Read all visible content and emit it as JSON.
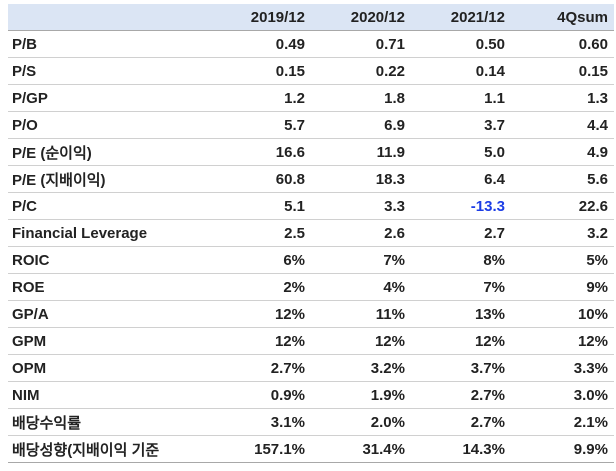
{
  "columns": [
    "",
    "2019/12",
    "2020/12",
    "2021/12",
    "4Qsum"
  ],
  "rows": [
    {
      "label": "P/B",
      "values": [
        "0.49",
        "0.71",
        "0.50",
        "0.60"
      ]
    },
    {
      "label": "P/S",
      "values": [
        "0.15",
        "0.22",
        "0.14",
        "0.15"
      ]
    },
    {
      "label": "P/GP",
      "values": [
        "1.2",
        "1.8",
        "1.1",
        "1.3"
      ]
    },
    {
      "label": "P/O",
      "values": [
        "5.7",
        "6.9",
        "3.7",
        "4.4"
      ]
    },
    {
      "label": "P/E (순이익)",
      "values": [
        "16.6",
        "11.9",
        "5.0",
        "4.9"
      ]
    },
    {
      "label": "P/E (지배이익)",
      "values": [
        "60.8",
        "18.3",
        "6.4",
        "5.6"
      ]
    },
    {
      "label": "P/C",
      "values": [
        "5.1",
        "3.3",
        "-13.3",
        "22.6"
      ]
    },
    {
      "label": "Financial Leverage",
      "values": [
        "2.5",
        "2.6",
        "2.7",
        "3.2"
      ]
    },
    {
      "label": "ROIC",
      "values": [
        "6%",
        "7%",
        "8%",
        "5%"
      ]
    },
    {
      "label": "ROE",
      "values": [
        "2%",
        "4%",
        "7%",
        "9%"
      ]
    },
    {
      "label": "GP/A",
      "values": [
        "12%",
        "11%",
        "13%",
        "10%"
      ]
    },
    {
      "label": "GPM",
      "values": [
        "12%",
        "12%",
        "12%",
        "12%"
      ]
    },
    {
      "label": "OPM",
      "values": [
        "2.7%",
        "3.2%",
        "3.7%",
        "3.3%"
      ]
    },
    {
      "label": "NIM",
      "values": [
        "0.9%",
        "1.9%",
        "2.7%",
        "3.0%"
      ]
    },
    {
      "label": "배당수익률",
      "values": [
        "3.1%",
        "2.0%",
        "2.7%",
        "2.1%"
      ]
    },
    {
      "label": "배당성향(지배이익 기준",
      "values": [
        "157.1%",
        "31.4%",
        "14.3%",
        "9.9%"
      ]
    }
  ],
  "colors": {
    "header_bg": "#dbe5f4",
    "negative_value": "#1c3de6"
  }
}
